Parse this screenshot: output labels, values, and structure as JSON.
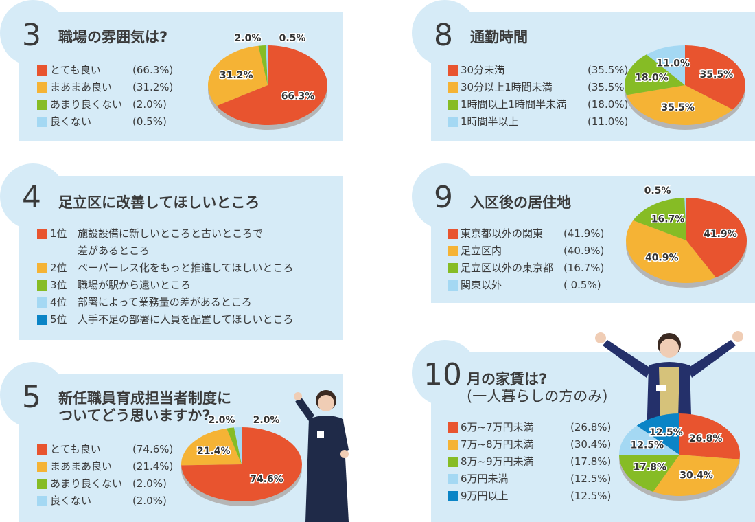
{
  "colors": {
    "red": "#e8542f",
    "orange": "#f5b335",
    "green": "#86bc25",
    "lightblue": "#a4d8f3",
    "blue": "#0a84c6",
    "panel": "#d6ebf7"
  },
  "q4": {
    "number": "4",
    "title": "足立区に改善してほしいところ",
    "items": [
      {
        "rank": "1位",
        "text": "施設設備に新しいところと古いところで",
        "text2": "差があるところ",
        "color": "#e8542f"
      },
      {
        "rank": "2位",
        "text": "ペーパーレス化をもっと推進してほしいところ",
        "color": "#f5b335"
      },
      {
        "rank": "3位",
        "text": "職場が駅から遠いところ",
        "color": "#86bc25"
      },
      {
        "rank": "4位",
        "text": "部署によって業務量の差があるところ",
        "color": "#a4d8f3"
      },
      {
        "rank": "5位",
        "text": "人手不足の部署に人員を配置してほしいところ",
        "color": "#0a84c6"
      }
    ]
  },
  "chart_data": [
    {
      "type": "pie",
      "number": "3",
      "title": "職場の雰囲気は?",
      "subtitle": "",
      "categories": [
        "とても良い",
        "まあまあ良い",
        "あまり良くない",
        "良くない"
      ],
      "values": [
        66.3,
        31.2,
        2.0,
        0.5
      ],
      "legend_values": [
        "(66.3%)",
        "(31.2%)",
        "(2.0%)",
        "(0.5%)"
      ],
      "labels": [
        "66.3%",
        "31.2%",
        "2.0%",
        "0.5%"
      ],
      "colors": [
        "#e8542f",
        "#f5b335",
        "#86bc25",
        "#a4d8f3"
      ]
    },
    {
      "type": "pie",
      "number": "5",
      "title": "新任職員育成担当者制度に",
      "subtitle": "ついてどう思いますか?",
      "categories": [
        "とても良い",
        "まあまあ良い",
        "あまり良くない",
        "良くない"
      ],
      "values": [
        74.6,
        21.4,
        2.0,
        2.0
      ],
      "legend_values": [
        "(74.6%)",
        "(21.4%)",
        "(2.0%)",
        "(2.0%)"
      ],
      "labels": [
        "74.6%",
        "21.4%",
        "2.0%",
        "2.0%"
      ],
      "colors": [
        "#e8542f",
        "#f5b335",
        "#86bc25",
        "#a4d8f3"
      ]
    },
    {
      "type": "pie",
      "number": "8",
      "title": "通勤時間",
      "subtitle": "",
      "categories": [
        "30分未満",
        "30分以上1時間未満",
        "1時間以上1時間半未満",
        "1時間半以上"
      ],
      "values": [
        35.5,
        35.5,
        18.0,
        11.0
      ],
      "legend_values": [
        "(35.5%)",
        "(35.5%)",
        "(18.0%)",
        "(11.0%)"
      ],
      "labels": [
        "35.5%",
        "35.5%",
        "18.0%",
        "11.0%"
      ],
      "colors": [
        "#e8542f",
        "#f5b335",
        "#86bc25",
        "#a4d8f3"
      ]
    },
    {
      "type": "pie",
      "number": "9",
      "title": "入区後の居住地",
      "subtitle": "",
      "categories": [
        "東京都以外の関東",
        "足立区内",
        "足立区以外の東京都",
        "関東以外"
      ],
      "values": [
        41.9,
        40.9,
        16.7,
        0.5
      ],
      "legend_values": [
        "(41.9%)",
        "(40.9%)",
        "(16.7%)",
        "(  0.5%)"
      ],
      "labels": [
        "41.9%",
        "40.9%",
        "16.7%",
        "0.5%"
      ],
      "colors": [
        "#e8542f",
        "#f5b335",
        "#86bc25",
        "#a4d8f3"
      ]
    },
    {
      "type": "pie",
      "number": "10",
      "title": "月の家賃は?",
      "subtitle": "(一人暮らしの方のみ)",
      "categories": [
        "6万~7万円未満",
        "7万~8万円未満",
        "8万~9万円未満",
        "6万円未満",
        "9万円以上"
      ],
      "values": [
        26.8,
        30.4,
        17.8,
        12.5,
        12.5
      ],
      "legend_values": [
        "(26.8%)",
        "(30.4%)",
        "(17.8%)",
        "(12.5%)",
        "(12.5%)"
      ],
      "labels": [
        "26.8%",
        "30.4%",
        "17.8%",
        "12.5%",
        "12.5%"
      ],
      "colors": [
        "#e8542f",
        "#f5b335",
        "#86bc25",
        "#a4d8f3",
        "#0a84c6"
      ]
    }
  ]
}
